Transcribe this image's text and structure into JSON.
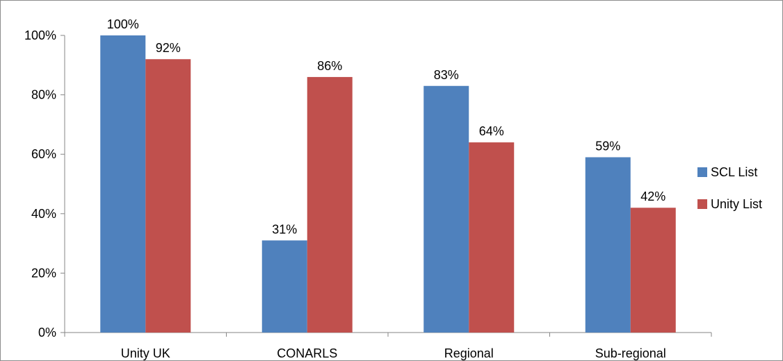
{
  "chart_data": {
    "type": "bar",
    "categories": [
      "Unity UK",
      "CONARLS",
      "Regional",
      "Sub-regional"
    ],
    "series": [
      {
        "name": "SCL List",
        "values": [
          100,
          31,
          83,
          59
        ],
        "color": "#4f81bd"
      },
      {
        "name": "Unity List",
        "values": [
          92,
          86,
          64,
          42
        ],
        "color": "#c0504d"
      }
    ],
    "value_labels": [
      [
        "100%",
        "31%",
        "83%",
        "59%"
      ],
      [
        "92%",
        "86%",
        "64%",
        "42%"
      ]
    ],
    "yticks": [
      "0%",
      "20%",
      "40%",
      "60%",
      "80%",
      "100%"
    ],
    "ytick_values": [
      0,
      20,
      40,
      60,
      80,
      100
    ],
    "ylim": [
      0,
      100
    ],
    "title": "",
    "xlabel": "",
    "ylabel": "",
    "grid": false,
    "legend_position": "right"
  }
}
